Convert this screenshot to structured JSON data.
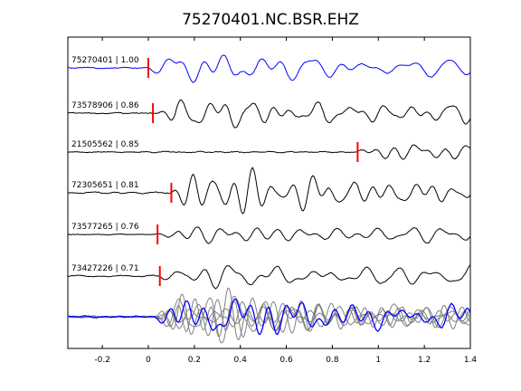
{
  "chart_data": {
    "type": "line",
    "title": "75270401.NC.BSR.EHZ",
    "xlabel": "",
    "ylabel": "",
    "xlim": [
      -0.35,
      1.4
    ],
    "x_ticks": [
      -0.2,
      0,
      0.2,
      0.4,
      0.6,
      0.8,
      1,
      1.2,
      1.4
    ],
    "x_tick_labels": [
      "-0.2",
      "0",
      "0.2",
      "0.4",
      "0.6",
      "0.8",
      "1",
      "1.2",
      "1.4"
    ],
    "grid": false,
    "colors": {
      "reference": "#0000ff",
      "trace": "#000000",
      "overlay": "#808080",
      "pick": "#ff0000"
    },
    "series": [
      {
        "label": "75270401 | 1.00",
        "pick_time": 0.0,
        "color": "#0000ff",
        "seed": 11
      },
      {
        "label": "73578906 | 0.86",
        "pick_time": 0.02,
        "color": "#000000",
        "seed": 23
      },
      {
        "label": "21505562 | 0.85",
        "pick_time": 0.91,
        "color": "#000000",
        "seed": 37
      },
      {
        "label": "72305651 | 0.81",
        "pick_time": 0.1,
        "color": "#000000",
        "seed": 41
      },
      {
        "label": "73577265 | 0.76",
        "pick_time": 0.04,
        "color": "#000000",
        "seed": 53
      },
      {
        "label": "73427226 | 0.71",
        "pick_time": 0.05,
        "color": "#000000",
        "seed": 67
      }
    ],
    "overlay": {
      "type": "stack",
      "reference_color": "#0000ff",
      "others_color": "#808080"
    }
  }
}
